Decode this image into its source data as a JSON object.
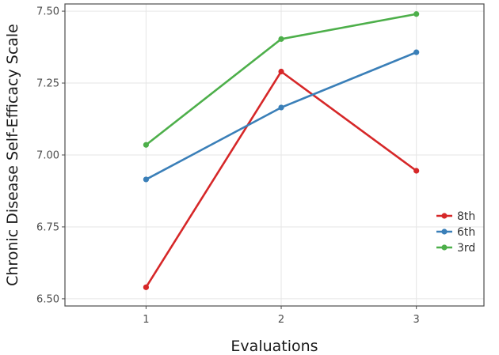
{
  "chart_data": {
    "type": "line",
    "title": "",
    "xlabel": "Evaluations",
    "ylabel": "Chronic Disease Self-Efficacy Scale",
    "x": [
      1,
      2,
      3
    ],
    "xticks": [
      "1",
      "2",
      "3"
    ],
    "yticks": [
      "6.50",
      "6.75",
      "7.00",
      "7.25",
      "7.50"
    ],
    "ylim": [
      6.5,
      7.5
    ],
    "xlim": [
      0.4,
      3.5
    ],
    "grid": true,
    "legend_position": "right",
    "series": [
      {
        "name": "8th",
        "color": "#d62728",
        "values": [
          6.54,
          7.29,
          6.945
        ]
      },
      {
        "name": "6th",
        "color": "#3a7fb8",
        "values": [
          6.915,
          7.165,
          7.357
        ]
      },
      {
        "name": "3rd",
        "color": "#4daf4a",
        "values": [
          7.035,
          7.403,
          7.49
        ]
      }
    ]
  }
}
